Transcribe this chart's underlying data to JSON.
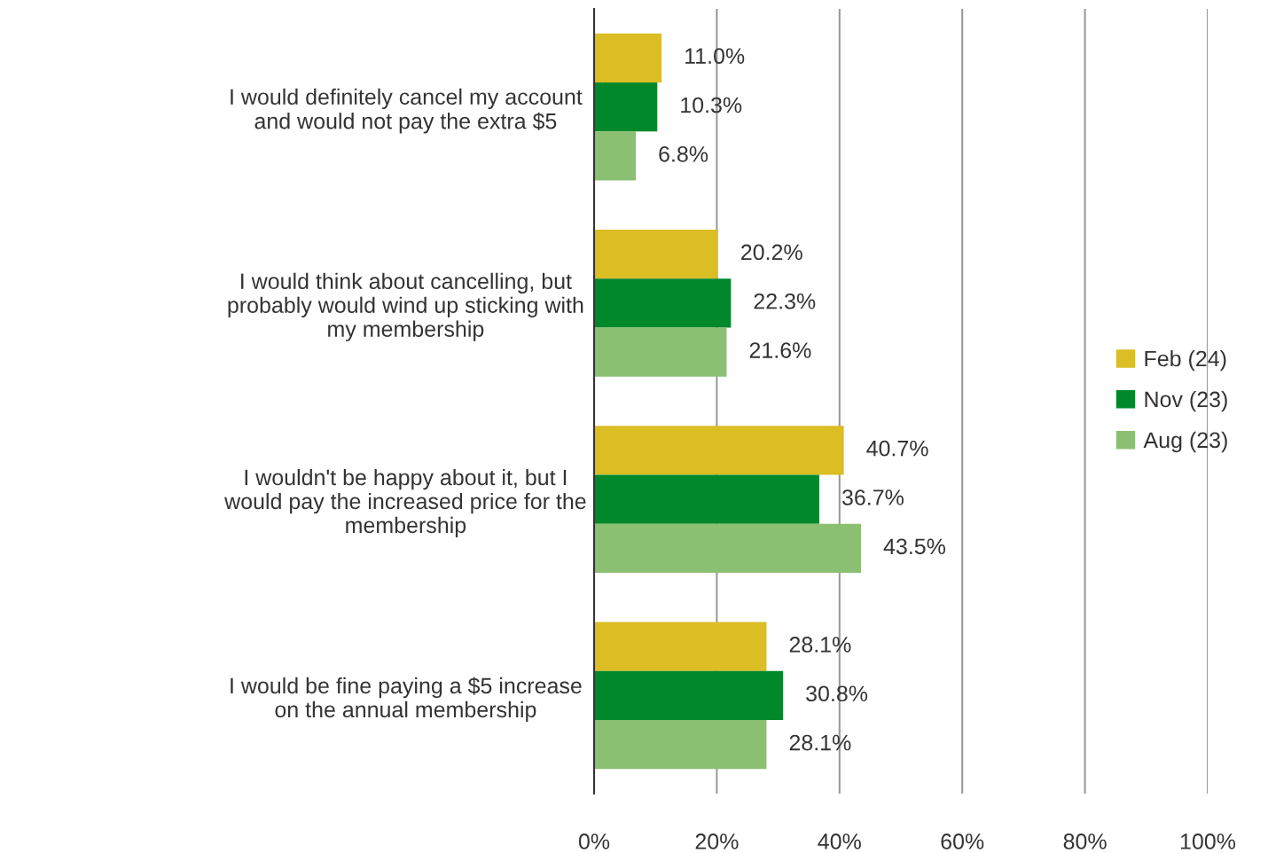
{
  "chart_data": {
    "type": "bar",
    "orientation": "horizontal",
    "categories": [
      "I would definitely cancel my account\nand would not pay the extra $5",
      "I would think about cancelling, but\nprobably would wind up sticking with\nmy membership",
      "I wouldn't be happy about it, but I\nwould pay the increased price for the\nmembership",
      "I would be fine paying a $5 increase\non the annual membership"
    ],
    "series": [
      {
        "name": "Feb (24)",
        "color": "#dbbd24",
        "values": [
          11.0,
          20.2,
          40.7,
          28.1
        ],
        "value_labels": [
          "11.0%",
          "20.2%",
          "40.7%",
          "28.1%"
        ]
      },
      {
        "name": "Nov (23)",
        "color": "#00882b",
        "values": [
          10.3,
          22.3,
          36.7,
          30.8
        ],
        "value_labels": [
          "10.3%",
          "22.3%",
          "36.7%",
          "30.8%"
        ]
      },
      {
        "name": "Aug (23)",
        "color": "#8bbf72",
        "values": [
          6.8,
          21.6,
          43.5,
          28.1
        ],
        "value_labels": [
          "6.8%",
          "21.6%",
          "43.5%",
          "28.1%"
        ]
      }
    ],
    "xlim": [
      0,
      100
    ],
    "xticks": [
      {
        "value": 0,
        "label": "0%"
      },
      {
        "value": 20,
        "label": "20%"
      },
      {
        "value": 40,
        "label": "40%"
      },
      {
        "value": 60,
        "label": "60%"
      },
      {
        "value": 80,
        "label": "80%"
      },
      {
        "value": 100,
        "label": "100%"
      }
    ],
    "grid": "x",
    "legend": "right"
  }
}
